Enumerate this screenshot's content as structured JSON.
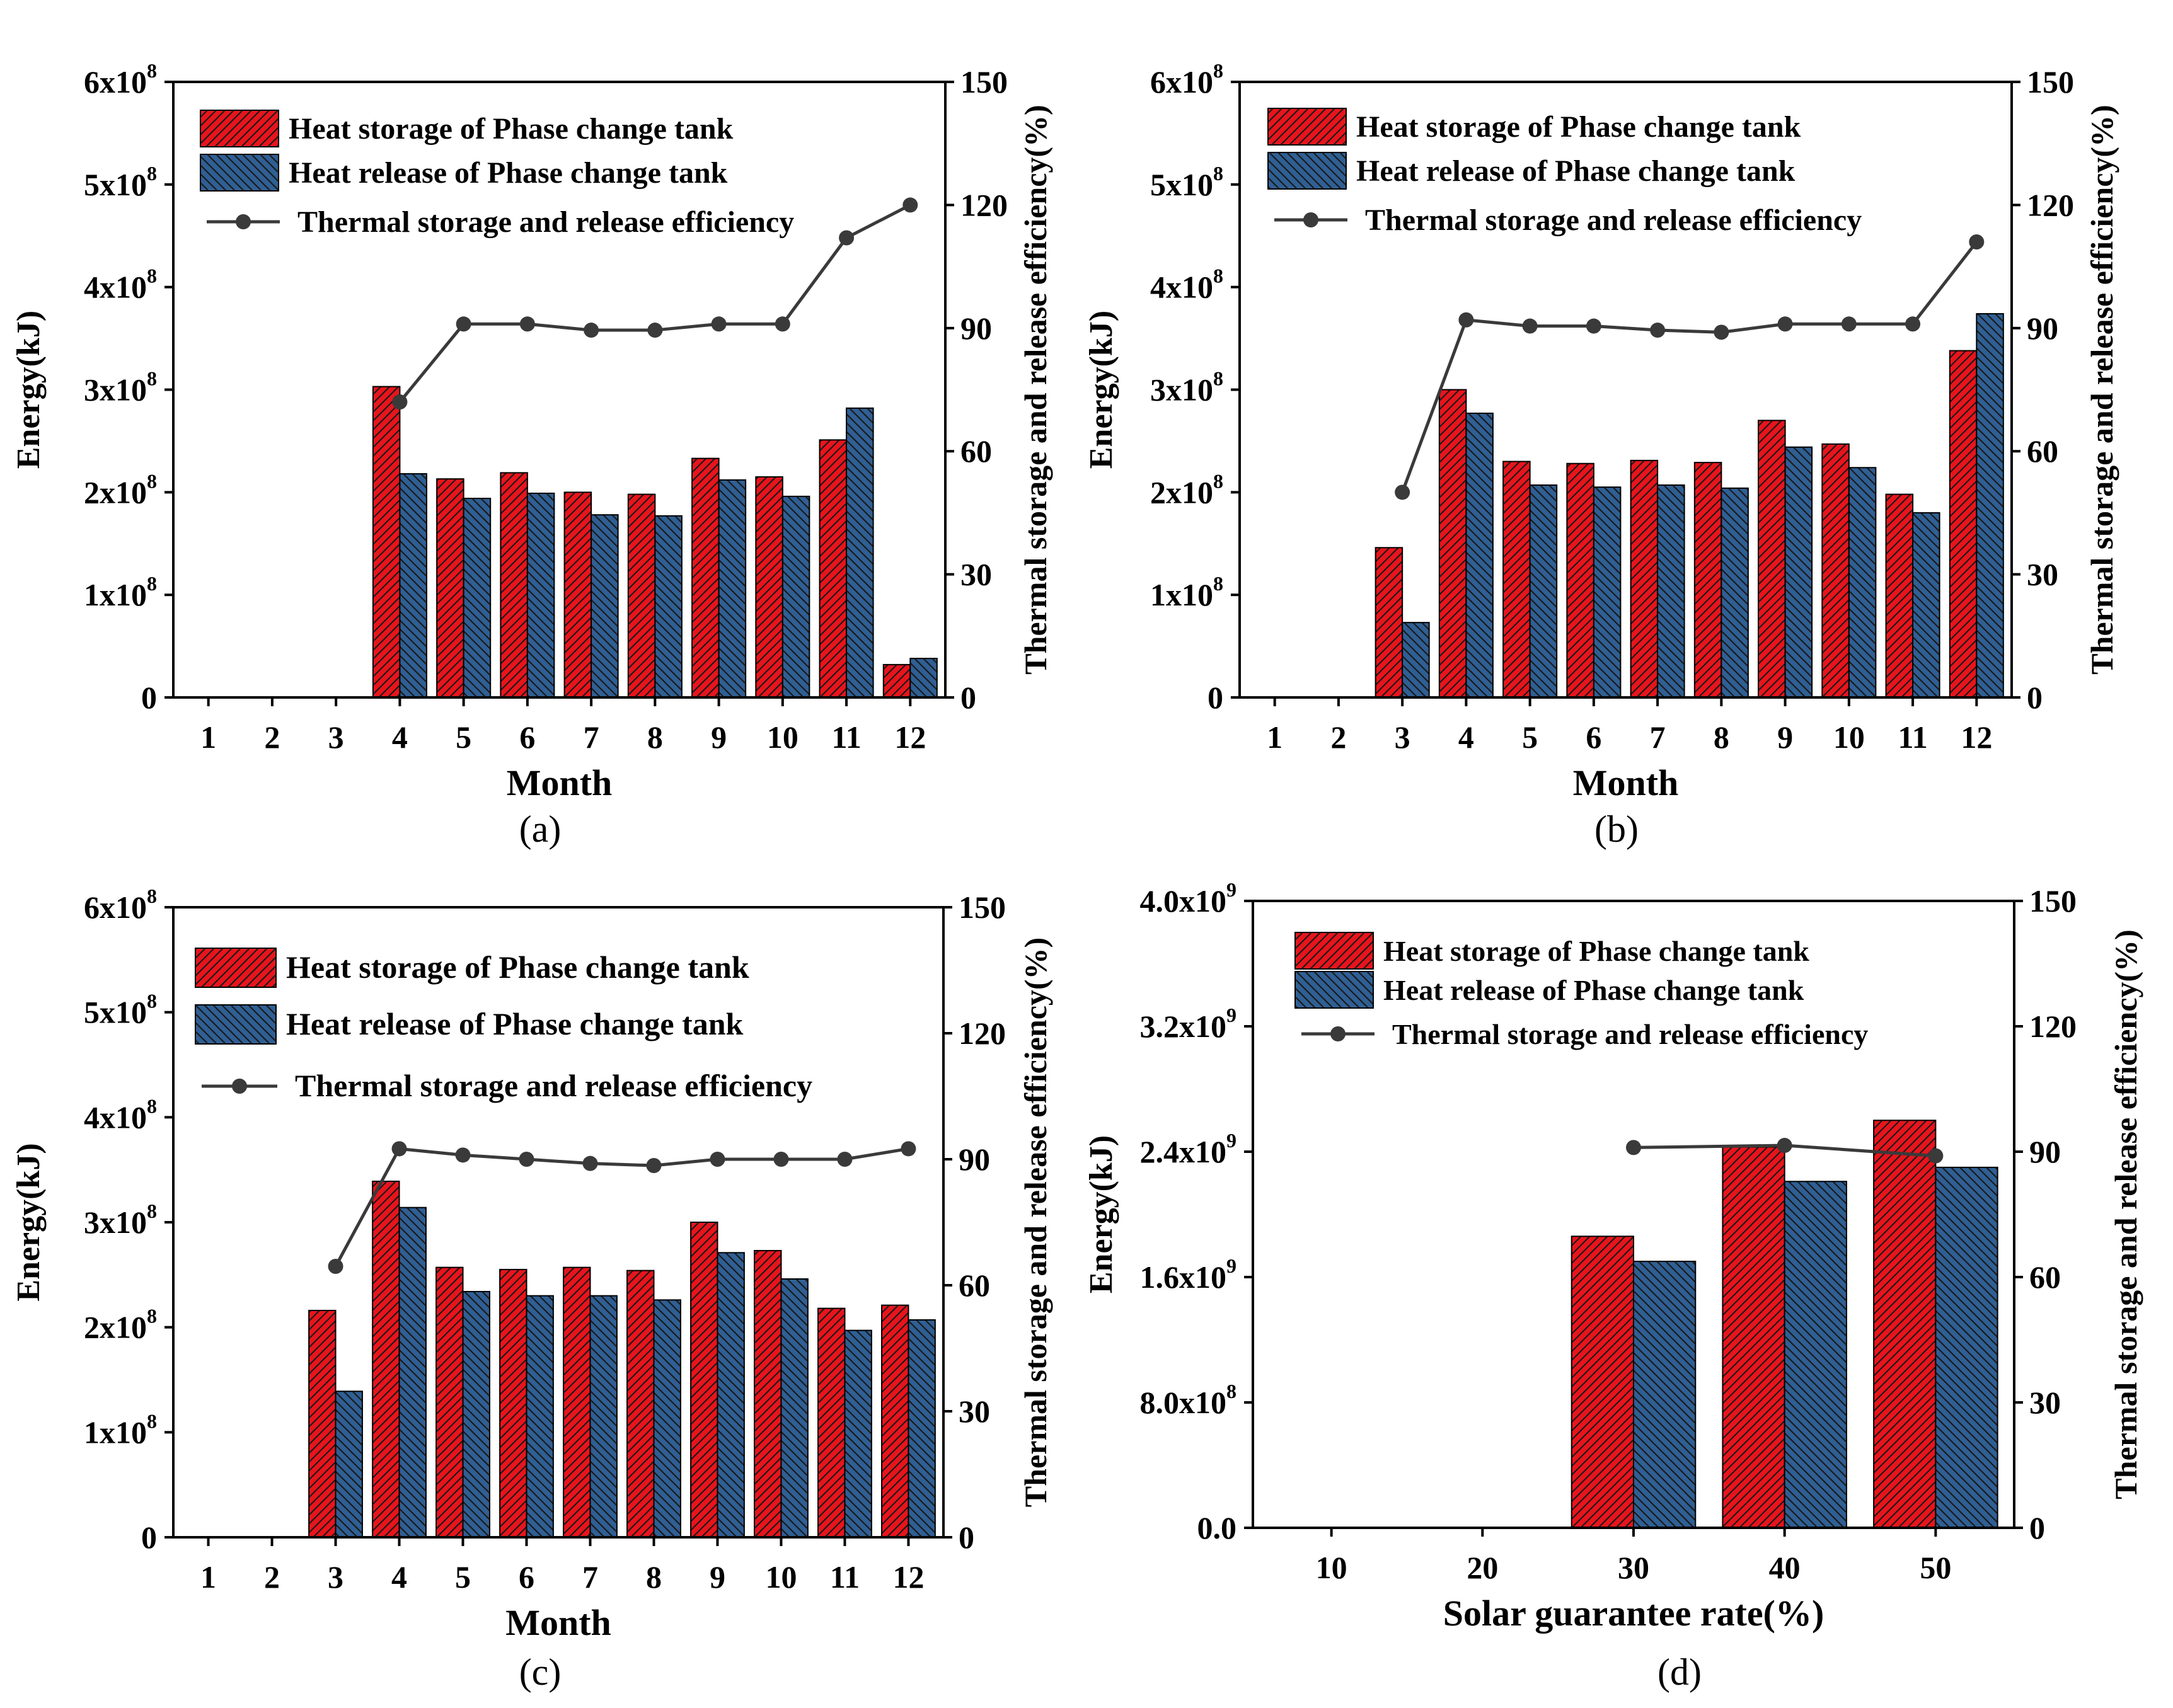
{
  "figure": {
    "colors": {
      "storage": "#e8141c",
      "release": "#2f5f94",
      "line": "#3a3a3a"
    },
    "panel_labels": [
      "(a)",
      "(b)",
      "(c)",
      "(d)"
    ]
  },
  "chart_data": [
    {
      "id": "a",
      "type": "bar",
      "xlabel": "Month",
      "ylabel": "Energy(kJ)",
      "y2label": "Thermal storage and release efficiency(%)",
      "categories": [
        "1",
        "2",
        "3",
        "4",
        "5",
        "6",
        "7",
        "8",
        "9",
        "10",
        "11",
        "12"
      ],
      "ylim": [
        0,
        600000000
      ],
      "y_ticks": [
        0,
        100000000,
        200000000,
        300000000,
        400000000,
        500000000,
        600000000
      ],
      "y_tick_labels": [
        {
          "m": "0",
          "e": ""
        },
        {
          "m": "1x10",
          "e": "8"
        },
        {
          "m": "2x10",
          "e": "8"
        },
        {
          "m": "3x10",
          "e": "8"
        },
        {
          "m": "4x10",
          "e": "8"
        },
        {
          "m": "5x10",
          "e": "8"
        },
        {
          "m": "6x10",
          "e": "8"
        }
      ],
      "y2lim": [
        0,
        150
      ],
      "y2_ticks": [
        0,
        30,
        60,
        90,
        120,
        150
      ],
      "y2_tick_labels": [
        "0",
        "30",
        "60",
        "90",
        "120",
        "150"
      ],
      "series": [
        {
          "name": "Heat storage of Phase change tank",
          "kind": "bar",
          "values": [
            0,
            0,
            0,
            303000000,
            213000000,
            219000000,
            200000000,
            198000000,
            233000000,
            215000000,
            251000000,
            32000000
          ]
        },
        {
          "name": "Heat release of Phase change tank",
          "kind": "bar",
          "values": [
            0,
            0,
            0,
            218000000,
            194000000,
            199000000,
            178000000,
            177000000,
            212000000,
            196000000,
            282000000,
            38000000
          ]
        },
        {
          "name": "Thermal storage and release efficiency",
          "kind": "line",
          "axis": "y2",
          "values": [
            null,
            null,
            null,
            72,
            91,
            91,
            89.5,
            89.5,
            91,
            91,
            112,
            120
          ]
        }
      ]
    },
    {
      "id": "b",
      "type": "bar",
      "xlabel": "Month",
      "ylabel": "Energy(kJ)",
      "y2label": "Thermal storage and release efficiency(%)",
      "categories": [
        "1",
        "2",
        "3",
        "4",
        "5",
        "6",
        "7",
        "8",
        "9",
        "10",
        "11",
        "12"
      ],
      "ylim": [
        0,
        600000000
      ],
      "y_ticks": [
        0,
        100000000,
        200000000,
        300000000,
        400000000,
        500000000,
        600000000
      ],
      "y_tick_labels": [
        {
          "m": "0",
          "e": ""
        },
        {
          "m": "1x10",
          "e": "8"
        },
        {
          "m": "2x10",
          "e": "8"
        },
        {
          "m": "3x10",
          "e": "8"
        },
        {
          "m": "4x10",
          "e": "8"
        },
        {
          "m": "5x10",
          "e": "8"
        },
        {
          "m": "6x10",
          "e": "8"
        }
      ],
      "y2lim": [
        0,
        150
      ],
      "y2_ticks": [
        0,
        30,
        60,
        90,
        120,
        150
      ],
      "y2_tick_labels": [
        "0",
        "30",
        "60",
        "90",
        "120",
        "150"
      ],
      "series": [
        {
          "name": "Heat storage of Phase change tank",
          "kind": "bar",
          "values": [
            0,
            0,
            146000000,
            300000000,
            230000000,
            228000000,
            231000000,
            229000000,
            270000000,
            247000000,
            198000000,
            338000000
          ]
        },
        {
          "name": "Heat release of Phase change tank",
          "kind": "bar",
          "values": [
            0,
            0,
            73000000,
            277000000,
            207000000,
            205000000,
            207000000,
            204000000,
            244000000,
            224000000,
            180000000,
            374000000
          ]
        },
        {
          "name": "Thermal storage and release efficiency",
          "kind": "line",
          "axis": "y2",
          "values": [
            null,
            null,
            50,
            92,
            90.5,
            90.5,
            89.5,
            89,
            91,
            91,
            91,
            111
          ]
        }
      ]
    },
    {
      "id": "c",
      "type": "bar",
      "xlabel": "Month",
      "ylabel": "Energy(kJ)",
      "y2label": "Thermal storage and release efficiency(%)",
      "categories": [
        "1",
        "2",
        "3",
        "4",
        "5",
        "6",
        "7",
        "8",
        "9",
        "10",
        "11",
        "12"
      ],
      "ylim": [
        0,
        600000000
      ],
      "y_ticks": [
        0,
        100000000,
        200000000,
        300000000,
        400000000,
        500000000,
        600000000
      ],
      "y_tick_labels": [
        {
          "m": "0",
          "e": ""
        },
        {
          "m": "1x10",
          "e": "8"
        },
        {
          "m": "2x10",
          "e": "8"
        },
        {
          "m": "3x10",
          "e": "8"
        },
        {
          "m": "4x10",
          "e": "8"
        },
        {
          "m": "5x10",
          "e": "8"
        },
        {
          "m": "6x10",
          "e": "8"
        }
      ],
      "y2lim": [
        0,
        150
      ],
      "y2_ticks": [
        0,
        30,
        60,
        90,
        120,
        150
      ],
      "y2_tick_labels": [
        "0",
        "30",
        "60",
        "90",
        "120",
        "150"
      ],
      "series": [
        {
          "name": "Heat storage of Phase change tank",
          "kind": "bar",
          "values": [
            0,
            0,
            216000000,
            339000000,
            257000000,
            255000000,
            257000000,
            254000000,
            300000000,
            273000000,
            218000000,
            221000000
          ]
        },
        {
          "name": "Heat release of Phase change tank",
          "kind": "bar",
          "values": [
            0,
            0,
            139000000,
            314000000,
            234000000,
            230000000,
            230000000,
            226000000,
            271000000,
            246000000,
            197000000,
            207000000
          ]
        },
        {
          "name": "Thermal storage and release efficiency",
          "kind": "line",
          "axis": "y2",
          "values": [
            null,
            null,
            64.5,
            92.5,
            91,
            90,
            89,
            88.5,
            90,
            90,
            90,
            92.5
          ]
        }
      ]
    },
    {
      "id": "d",
      "type": "bar",
      "xlabel": "Solar guarantee rate(%)",
      "ylabel": "Energy(kJ)",
      "y2label": "Thermal storage and release efficiency(%)",
      "categories": [
        "10",
        "20",
        "30",
        "40",
        "50"
      ],
      "ylim": [
        0,
        4000000000
      ],
      "y_ticks": [
        0,
        800000000,
        1600000000,
        2400000000,
        3200000000,
        4000000000
      ],
      "y_tick_labels": [
        {
          "m": "0.0",
          "e": ""
        },
        {
          "m": "8.0x10",
          "e": "8"
        },
        {
          "m": "1.6x10",
          "e": "9"
        },
        {
          "m": "2.4x10",
          "e": "9"
        },
        {
          "m": "3.2x10",
          "e": "9"
        },
        {
          "m": "4.0x10",
          "e": "9"
        }
      ],
      "y2lim": [
        0,
        150
      ],
      "y2_ticks": [
        0,
        30,
        60,
        90,
        120,
        150
      ],
      "y2_tick_labels": [
        "0",
        "30",
        "60",
        "90",
        "120",
        "150"
      ],
      "series": [
        {
          "name": "Heat storage of Phase change tank",
          "kind": "bar",
          "values": [
            0,
            0,
            1860000000,
            2430000000,
            2600000000
          ]
        },
        {
          "name": "Heat release of Phase change tank",
          "kind": "bar",
          "values": [
            0,
            0,
            1700000000,
            2210000000,
            2300000000
          ]
        },
        {
          "name": "Thermal storage and release efficiency",
          "kind": "line",
          "axis": "y2",
          "values": [
            null,
            null,
            91,
            91.5,
            89
          ]
        }
      ]
    }
  ]
}
